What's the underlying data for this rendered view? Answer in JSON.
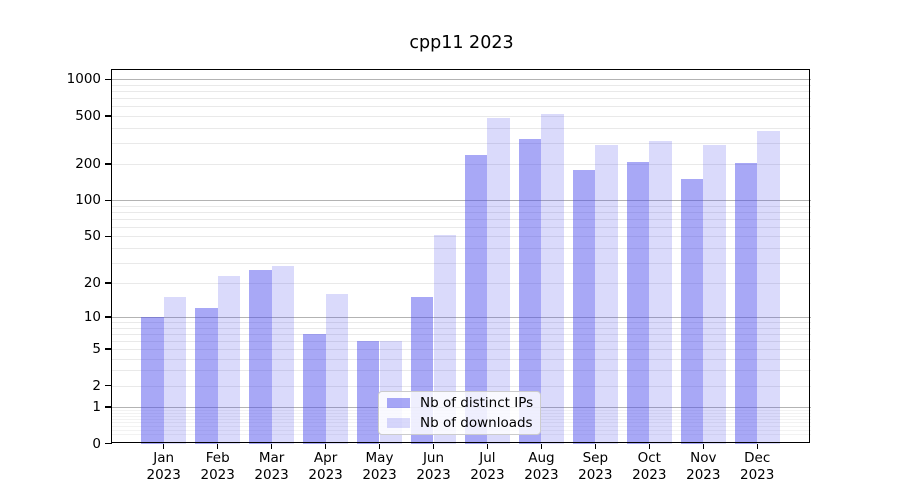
{
  "chart_data": {
    "type": "bar",
    "title": "cpp11 2023",
    "categories": [
      "Jan",
      "Feb",
      "Mar",
      "Apr",
      "May",
      "Jun",
      "Jul",
      "Aug",
      "Sep",
      "Oct",
      "Nov",
      "Dec"
    ],
    "category_year": "2023",
    "series": [
      {
        "name": "Nb of distinct IPs",
        "color": "rgba(70,70,235,0.47)",
        "values": [
          10,
          12,
          26,
          7,
          6,
          15,
          240,
          320,
          180,
          210,
          150,
          205
        ]
      },
      {
        "name": "Nb of downloads",
        "color": "rgba(70,70,235,0.20)",
        "values": [
          15,
          23,
          28,
          16,
          6,
          51,
          480,
          520,
          285,
          310,
          285,
          375
        ]
      }
    ],
    "y_axis": {
      "tick_values": [
        0,
        1,
        2,
        5,
        10,
        20,
        50,
        100,
        200,
        500,
        1000
      ],
      "tick_labels": [
        "0",
        "1",
        "2",
        "5",
        "10",
        "20",
        "50",
        "100",
        "200",
        "500",
        "1000"
      ],
      "scale": "symlog (ln(1+v))",
      "major_gridlines": [
        1,
        10,
        100,
        1000
      ],
      "ylim": [
        0,
        1200
      ]
    },
    "grid": true,
    "legend_position": "bottom-center"
  }
}
